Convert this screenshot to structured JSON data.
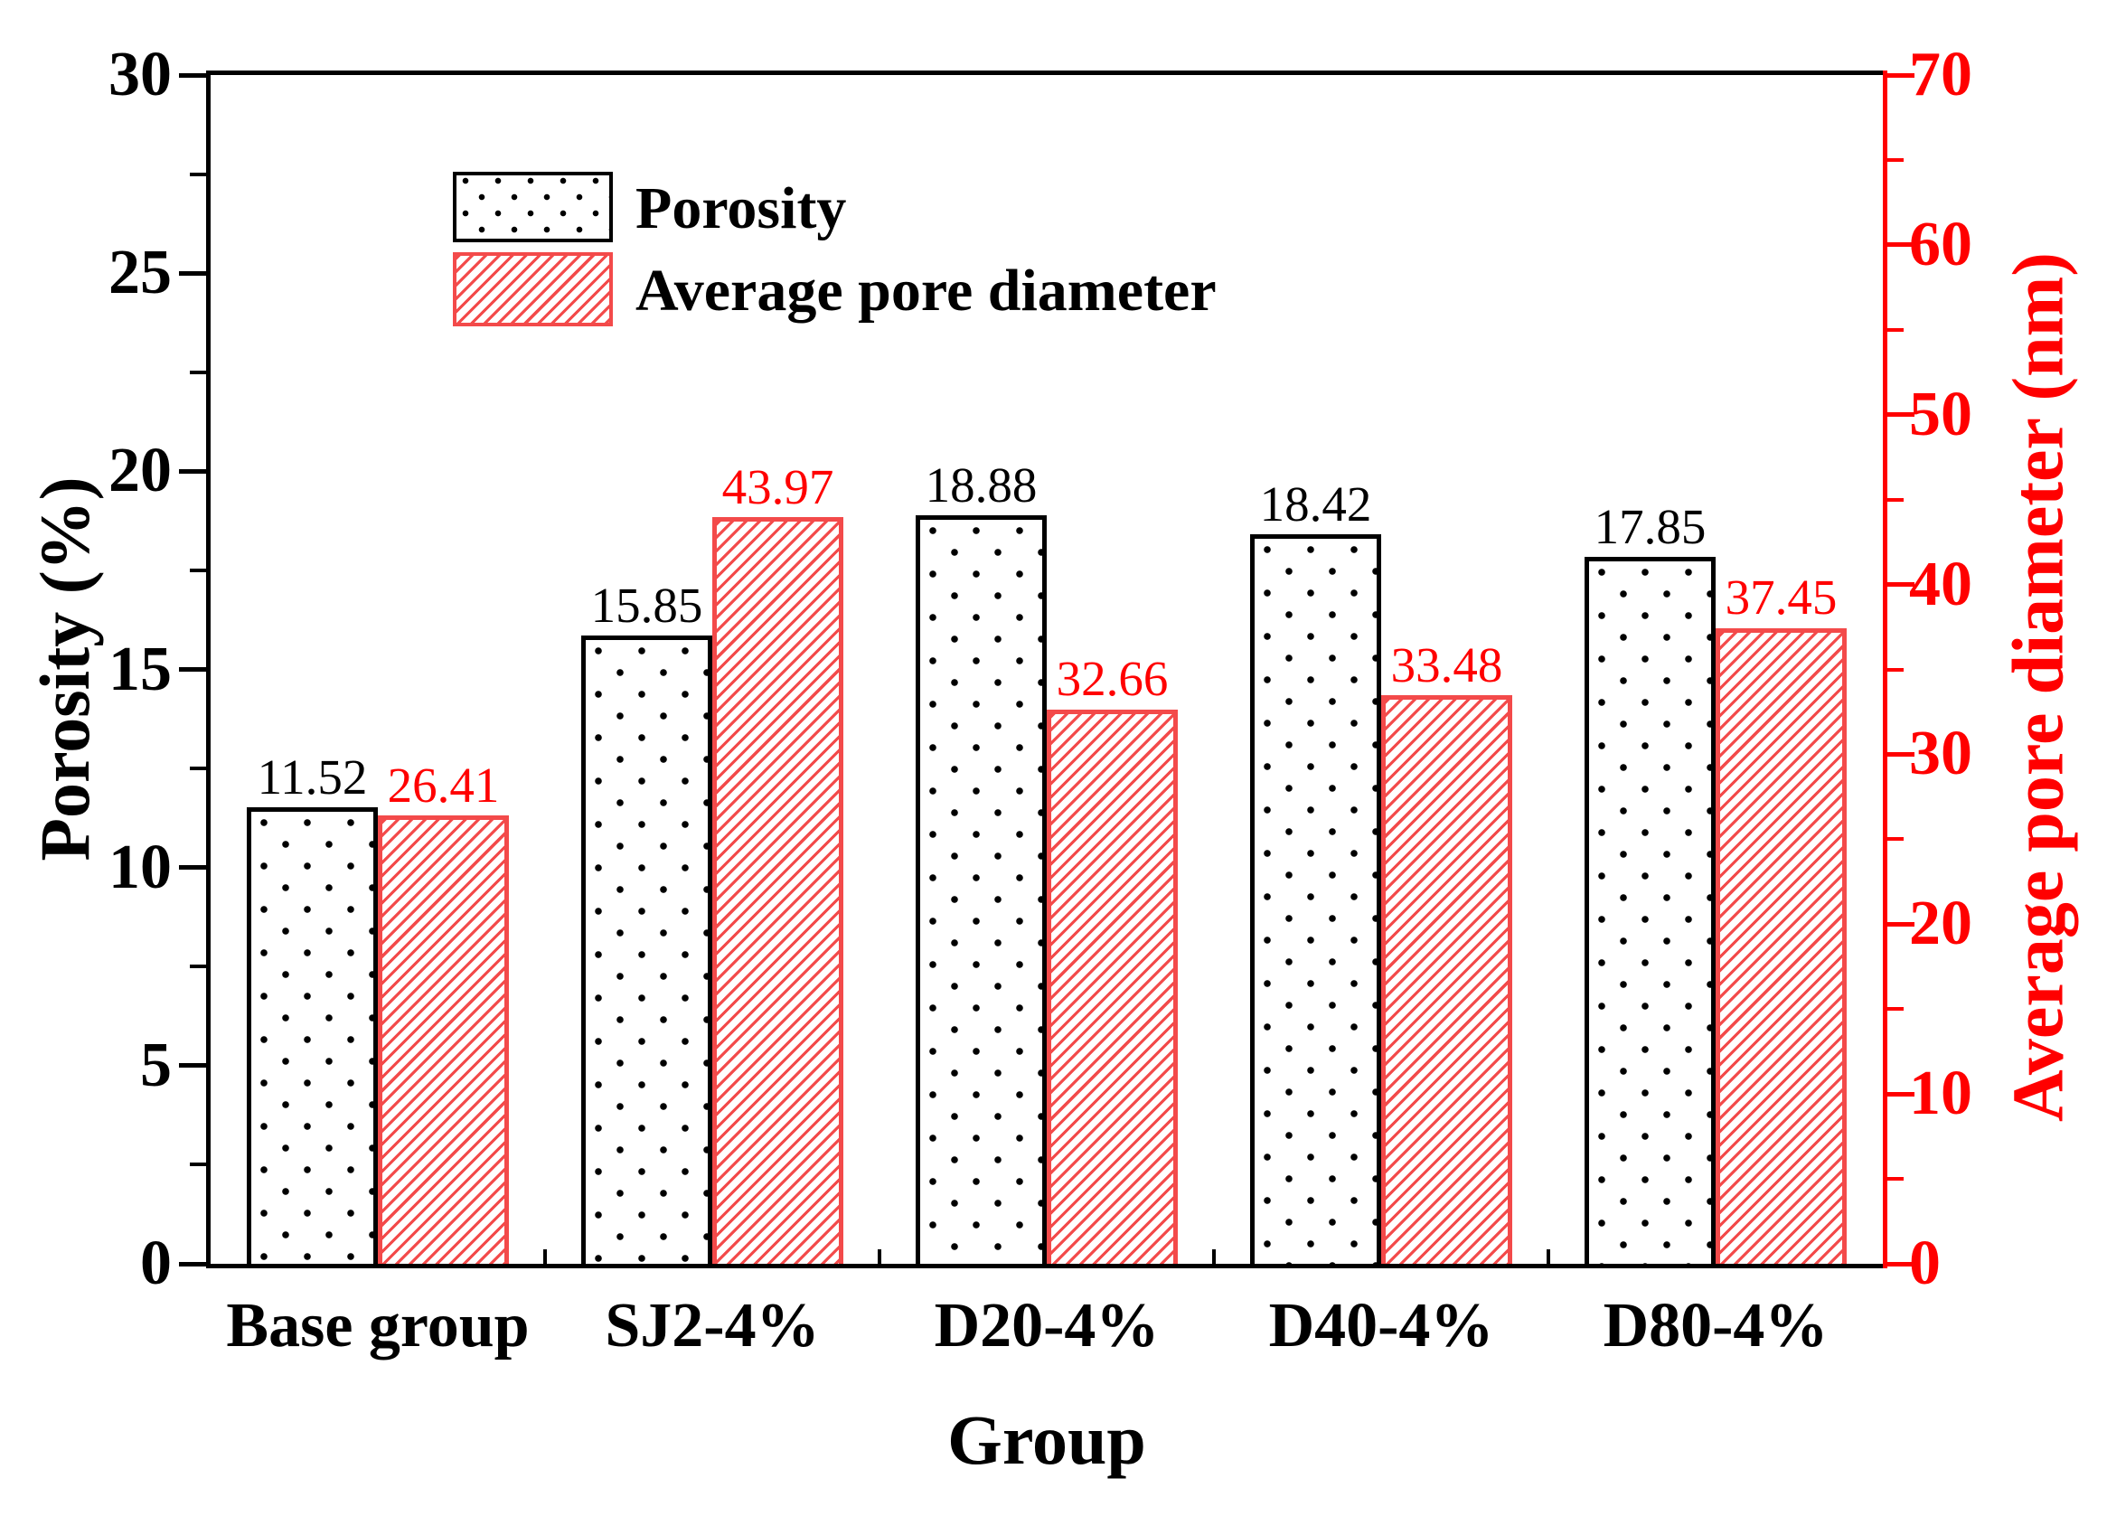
{
  "chart_data": {
    "type": "bar",
    "categories": [
      "Base group",
      "SJ2-4%",
      "D20-4%",
      "D40-4%",
      "D80-4%"
    ],
    "series": [
      {
        "name": "Porosity",
        "axis": "left",
        "values": [
          11.52,
          15.85,
          18.88,
          18.42,
          17.85
        ],
        "pattern": "black-dots",
        "color": "#000000"
      },
      {
        "name": "Average pore diameter",
        "axis": "right",
        "values": [
          26.41,
          43.97,
          32.66,
          33.48,
          37.45
        ],
        "pattern": "red-diagonal-hatch",
        "color": "#f34a4a"
      }
    ],
    "title": "",
    "xlabel": "Group",
    "ylabel_left": "Porosity (%)",
    "ylabel_right": "Average pore diameter (nm)",
    "ylim_left": [
      0,
      30
    ],
    "ylim_right": [
      0,
      70
    ],
    "yticks_left": [
      0,
      5,
      10,
      15,
      20,
      25,
      30
    ],
    "yticks_right": [
      0,
      10,
      20,
      30,
      40,
      50,
      60,
      70
    ],
    "minor_step_left": 2.5,
    "minor_step_right": 5,
    "grid": false,
    "legend_position": "top-left",
    "axis_color_left": "#000000",
    "axis_color_right": "#ff0000",
    "value_label_decimals": 2
  },
  "legend": {
    "items": [
      {
        "label": "Porosity"
      },
      {
        "label": "Average pore diameter"
      }
    ]
  }
}
